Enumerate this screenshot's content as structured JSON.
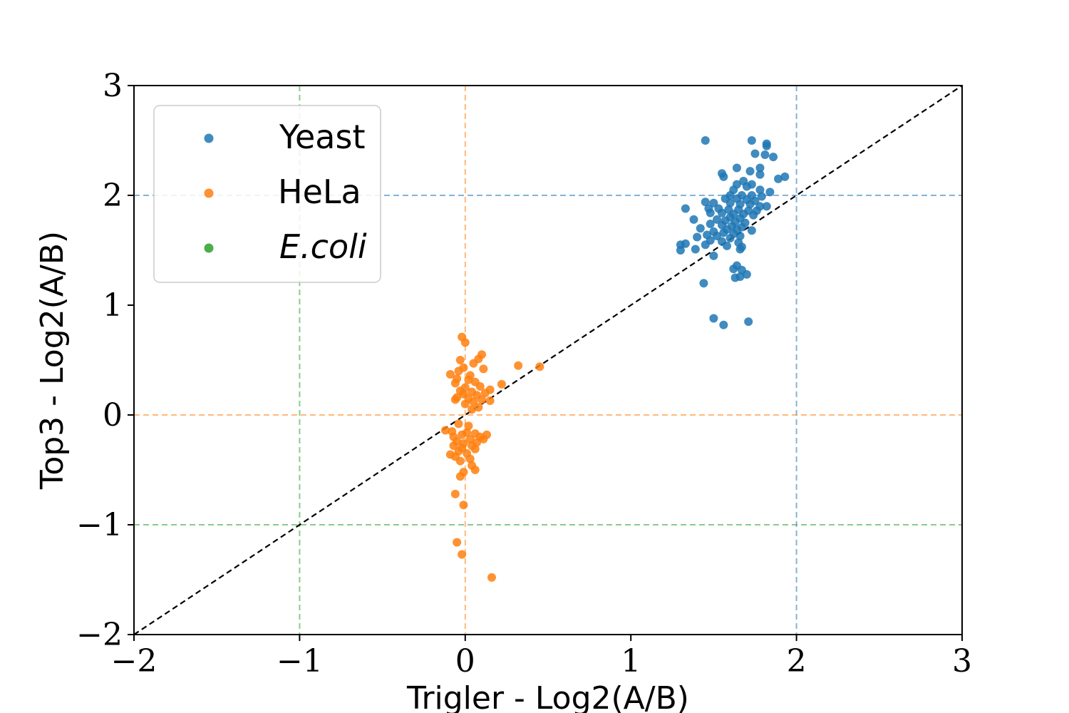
{
  "chart_data": {
    "type": "scatter",
    "xlabel": "Trigler - Log2(A/B)",
    "ylabel": "Top3 - Log2(A/B)",
    "xlim": [
      -2,
      3
    ],
    "ylim": [
      -2,
      3
    ],
    "x_ticks": [
      -2,
      -1,
      0,
      1,
      2,
      3
    ],
    "y_ticks": [
      -2,
      -1,
      0,
      1,
      2,
      3
    ],
    "x_tick_labels": [
      "−2",
      "−1",
      "0",
      "1",
      "2",
      "3"
    ],
    "y_tick_labels": [
      "−2",
      "−1",
      "0",
      "1",
      "2",
      "3"
    ],
    "grid": false,
    "legend": {
      "placement": "upper-left"
    },
    "diagonal": {
      "x": [
        -2,
        3
      ],
      "y": [
        -2,
        3
      ],
      "color": "#000000",
      "style": "dashed"
    },
    "series": [
      {
        "name": "Yeast",
        "color": "#1f77b4",
        "reference": {
          "x": 2,
          "y": 2
        },
        "points": [
          [
            1.45,
            2.5
          ],
          [
            1.73,
            2.5
          ],
          [
            1.82,
            2.47
          ],
          [
            1.82,
            2.45
          ],
          [
            1.75,
            2.38
          ],
          [
            1.81,
            2.37
          ],
          [
            1.86,
            2.35
          ],
          [
            1.78,
            2.25
          ],
          [
            1.64,
            2.25
          ],
          [
            1.72,
            2.22
          ],
          [
            1.78,
            2.19
          ],
          [
            1.93,
            2.17
          ],
          [
            1.55,
            2.2
          ],
          [
            1.89,
            2.15
          ],
          [
            1.56,
            2.17
          ],
          [
            1.68,
            2.13
          ],
          [
            1.73,
            2.1
          ],
          [
            1.64,
            2.1
          ],
          [
            1.7,
            2.08
          ],
          [
            1.62,
            2.05
          ],
          [
            1.78,
            2.05
          ],
          [
            1.84,
            2.03
          ],
          [
            1.6,
            2.0
          ],
          [
            1.67,
            2.0
          ],
          [
            1.73,
            2.0
          ],
          [
            1.79,
            1.99
          ],
          [
            1.57,
            1.97
          ],
          [
            1.64,
            1.97
          ],
          [
            1.7,
            1.96
          ],
          [
            1.75,
            1.95
          ],
          [
            1.45,
            1.94
          ],
          [
            1.5,
            1.93
          ],
          [
            1.6,
            1.93
          ],
          [
            1.66,
            1.92
          ],
          [
            1.72,
            1.92
          ],
          [
            1.78,
            1.9
          ],
          [
            1.82,
            1.9
          ],
          [
            1.33,
            1.88
          ],
          [
            1.47,
            1.88
          ],
          [
            1.53,
            1.88
          ],
          [
            1.59,
            1.87
          ],
          [
            1.65,
            1.87
          ],
          [
            1.71,
            1.86
          ],
          [
            1.76,
            1.86
          ],
          [
            1.48,
            1.84
          ],
          [
            1.55,
            1.84
          ],
          [
            1.62,
            1.83
          ],
          [
            1.68,
            1.83
          ],
          [
            1.74,
            1.82
          ],
          [
            1.6,
            1.8
          ],
          [
            1.66,
            1.79
          ],
          [
            1.52,
            1.78
          ],
          [
            1.38,
            1.78
          ],
          [
            1.57,
            1.77
          ],
          [
            1.63,
            1.76
          ],
          [
            1.69,
            1.75
          ],
          [
            1.48,
            1.74
          ],
          [
            1.55,
            1.73
          ],
          [
            1.61,
            1.72
          ],
          [
            1.67,
            1.71
          ],
          [
            1.42,
            1.7
          ],
          [
            1.58,
            1.69
          ],
          [
            1.64,
            1.69
          ],
          [
            1.73,
            1.68
          ],
          [
            1.5,
            1.67
          ],
          [
            1.56,
            1.66
          ],
          [
            1.62,
            1.65
          ],
          [
            1.46,
            1.64
          ],
          [
            1.52,
            1.63
          ],
          [
            1.66,
            1.63
          ],
          [
            1.4,
            1.62
          ],
          [
            1.6,
            1.61
          ],
          [
            1.48,
            1.59
          ],
          [
            1.55,
            1.58
          ],
          [
            1.65,
            1.57
          ],
          [
            1.3,
            1.55
          ],
          [
            1.33,
            1.56
          ],
          [
            1.45,
            1.55
          ],
          [
            1.58,
            1.54
          ],
          [
            1.67,
            1.53
          ],
          [
            1.3,
            1.5
          ],
          [
            1.39,
            1.51
          ],
          [
            1.66,
            1.51
          ],
          [
            1.5,
            1.45
          ],
          [
            1.64,
            1.36
          ],
          [
            1.62,
            1.33
          ],
          [
            1.67,
            1.32
          ],
          [
            1.7,
            1.28
          ],
          [
            1.63,
            1.25
          ],
          [
            1.66,
            1.26
          ],
          [
            1.44,
            1.2
          ],
          [
            1.5,
            0.88
          ],
          [
            1.71,
            0.85
          ],
          [
            1.56,
            0.82
          ]
        ]
      },
      {
        "name": "HeLa",
        "color": "#ff7f0e",
        "reference": {
          "x": 0,
          "y": 0
        },
        "points": [
          [
            -0.02,
            0.71
          ],
          [
            0.0,
            0.66
          ],
          [
            0.1,
            0.55
          ],
          [
            0.08,
            0.51
          ],
          [
            -0.03,
            0.5
          ],
          [
            0.05,
            0.47
          ],
          [
            0.32,
            0.45
          ],
          [
            0.45,
            0.44
          ],
          [
            0.11,
            0.42
          ],
          [
            -0.01,
            0.43
          ],
          [
            -0.04,
            0.4
          ],
          [
            -0.09,
            0.37
          ],
          [
            0.03,
            0.36
          ],
          [
            -0.05,
            0.33
          ],
          [
            0.02,
            0.32
          ],
          [
            -0.06,
            0.29
          ],
          [
            0.22,
            0.28
          ],
          [
            0.06,
            0.3
          ],
          [
            0.09,
            0.26
          ],
          [
            0.0,
            0.25
          ],
          [
            0.15,
            0.23
          ],
          [
            -0.03,
            0.22
          ],
          [
            0.04,
            0.21
          ],
          [
            0.12,
            0.2
          ],
          [
            -0.01,
            0.19
          ],
          [
            0.07,
            0.18
          ],
          [
            -0.05,
            0.16
          ],
          [
            0.02,
            0.15
          ],
          [
            0.1,
            0.14
          ],
          [
            0.15,
            0.13
          ],
          [
            -0.06,
            0.14
          ],
          [
            0.05,
            0.12
          ],
          [
            0.0,
            0.1
          ],
          [
            0.08,
            0.07
          ],
          [
            0.04,
            0.05
          ],
          [
            -0.04,
            -0.08
          ],
          [
            0.02,
            -0.1
          ],
          [
            -0.12,
            -0.14
          ],
          [
            -0.08,
            -0.15
          ],
          [
            0.01,
            -0.16
          ],
          [
            -0.02,
            -0.18
          ],
          [
            0.06,
            -0.17
          ],
          [
            0.13,
            -0.18
          ],
          [
            -0.07,
            -0.2
          ],
          [
            0.09,
            -0.2
          ],
          [
            0.03,
            -0.22
          ],
          [
            0.11,
            -0.22
          ],
          [
            -0.05,
            -0.24
          ],
          [
            0.07,
            -0.25
          ],
          [
            -0.01,
            -0.26
          ],
          [
            0.04,
            -0.28
          ],
          [
            -0.07,
            -0.28
          ],
          [
            -0.02,
            -0.3
          ],
          [
            0.06,
            -0.31
          ],
          [
            -0.04,
            -0.33
          ],
          [
            0.01,
            -0.35
          ],
          [
            -0.09,
            -0.36
          ],
          [
            -0.06,
            -0.38
          ],
          [
            0.03,
            -0.4
          ],
          [
            -0.03,
            -0.42
          ],
          [
            0.04,
            -0.46
          ],
          [
            0.06,
            -0.5
          ],
          [
            -0.01,
            -0.52
          ],
          [
            -0.03,
            -0.56
          ],
          [
            -0.06,
            -0.72
          ],
          [
            -0.01,
            -0.82
          ],
          [
            -0.05,
            -1.16
          ],
          [
            -0.02,
            -1.27
          ],
          [
            0.16,
            -1.48
          ]
        ]
      },
      {
        "name": "E.coli",
        "color": "#2ca02c",
        "reference": {
          "x": -1,
          "y": -1
        },
        "points": []
      }
    ]
  }
}
